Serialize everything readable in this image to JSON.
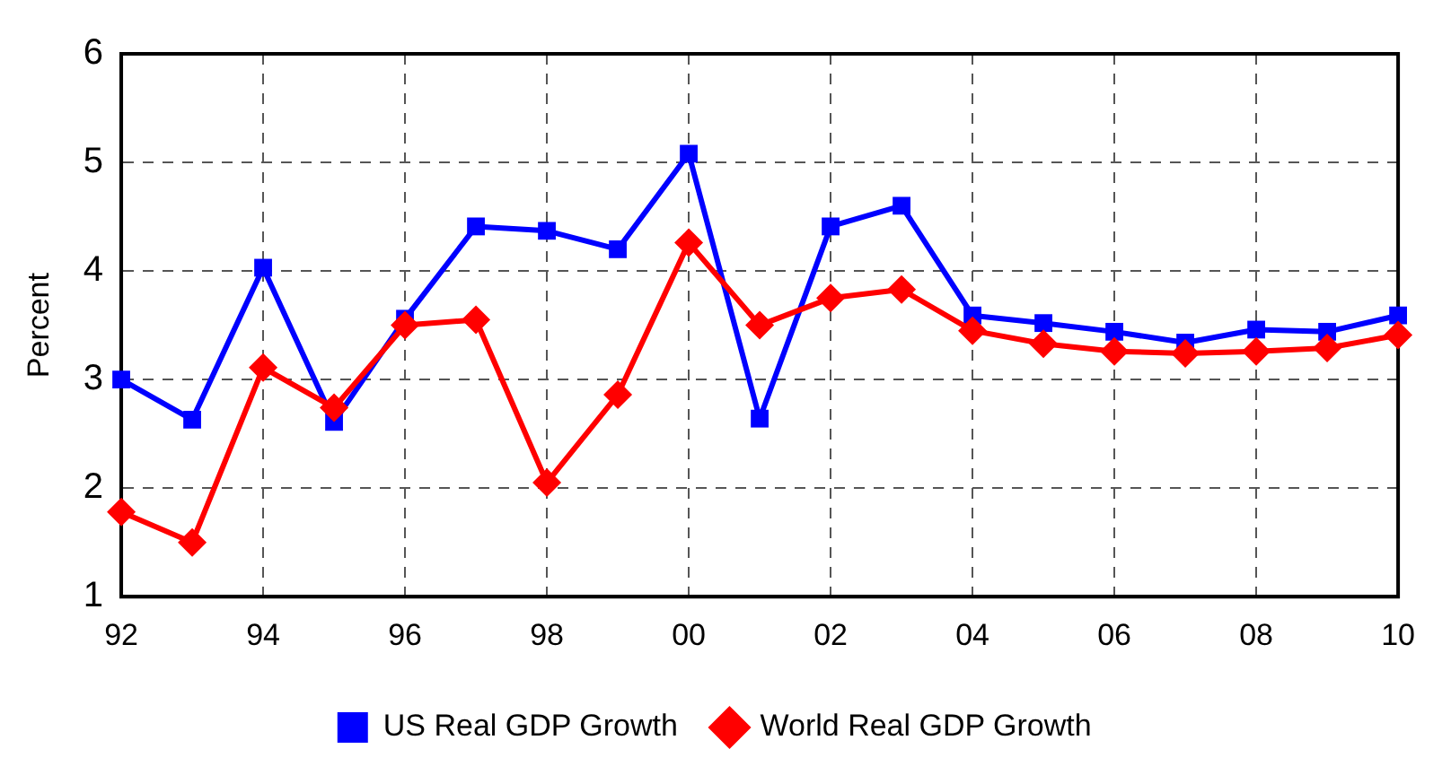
{
  "chart_data": {
    "type": "line",
    "ylabel": "Percent",
    "categories": [
      "92",
      null,
      "94",
      null,
      "96",
      null,
      "98",
      null,
      "00",
      null,
      "02",
      null,
      "04",
      null,
      "06",
      null,
      "08",
      null,
      "10"
    ],
    "series": [
      {
        "name": "US Real GDP Growth",
        "color": "#0000ff",
        "marker": "square",
        "values": [
          3.0,
          2.63,
          4.03,
          2.61,
          3.56,
          4.41,
          4.37,
          4.2,
          5.08,
          2.64,
          4.41,
          4.6,
          3.59,
          3.52,
          3.44,
          3.34,
          3.46,
          3.44,
          3.59
        ]
      },
      {
        "name": "World Real GDP Growth",
        "color": "#ff0000",
        "marker": "diamond",
        "values": [
          1.78,
          1.5,
          3.11,
          2.74,
          3.5,
          3.55,
          2.05,
          2.86,
          4.26,
          3.5,
          3.75,
          3.83,
          3.45,
          3.33,
          3.26,
          3.24,
          3.26,
          3.29,
          3.41
        ]
      }
    ],
    "ylim": [
      1,
      6
    ],
    "yticks": [
      1,
      2,
      3,
      4,
      5,
      6
    ],
    "grid": true,
    "legend": "bottom",
    "line_style": "solid"
  }
}
